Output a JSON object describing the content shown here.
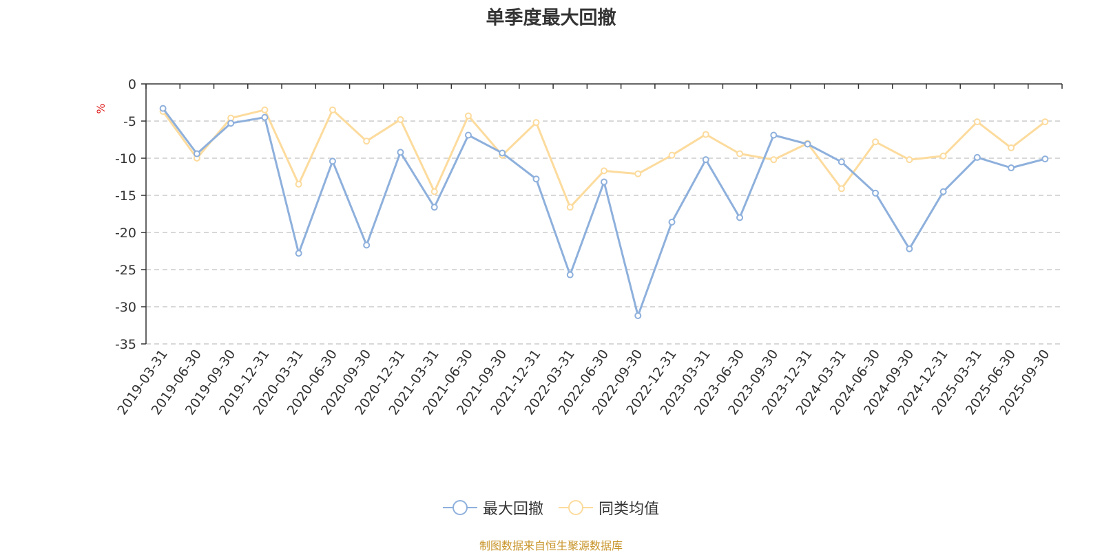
{
  "chart_data": {
    "type": "line",
    "title": "单季度最大回撤",
    "ylabel": "%",
    "xlabel": "",
    "ylim": [
      -35,
      0
    ],
    "yticks": [
      0,
      -5,
      -10,
      -15,
      -20,
      -25,
      -30,
      -35
    ],
    "categories": [
      "2019-03-31",
      "2019-06-30",
      "2019-09-30",
      "2019-12-31",
      "2020-03-31",
      "2020-06-30",
      "2020-09-30",
      "2020-12-31",
      "2021-03-31",
      "2021-06-30",
      "2021-09-30",
      "2021-12-31",
      "2022-03-31",
      "2022-06-30",
      "2022-09-30",
      "2022-12-31",
      "2023-03-31",
      "2023-06-30",
      "2023-09-30",
      "2023-12-31",
      "2024-03-31",
      "2024-06-30",
      "2024-09-30",
      "2024-12-31",
      "2025-03-31",
      "2025-06-30",
      "2025-09-30"
    ],
    "series": [
      {
        "name": "最大回撤",
        "color": "#8eb0dc",
        "values": [
          -3.3,
          -9.4,
          -5.3,
          -4.5,
          -22.8,
          -10.4,
          -21.7,
          -9.2,
          -16.6,
          -6.9,
          -9.3,
          -12.8,
          -25.7,
          -13.2,
          -31.2,
          -18.6,
          -10.2,
          -18.0,
          -6.9,
          -8.1,
          -10.5,
          -14.7,
          -22.2,
          -14.5,
          -9.9,
          -11.3,
          -10.1
        ]
      },
      {
        "name": "同类均值",
        "color": "#fcdb9d",
        "values": [
          -3.7,
          -10.0,
          -4.6,
          -3.5,
          -13.5,
          -3.5,
          -7.7,
          -4.8,
          -14.5,
          -4.3,
          -9.6,
          -5.2,
          -16.6,
          -11.7,
          -12.1,
          -9.6,
          -6.8,
          -9.4,
          -10.2,
          -8.0,
          -14.1,
          -7.8,
          -10.2,
          -9.7,
          -5.1,
          -8.6,
          -5.1
        ]
      }
    ]
  },
  "legend": [
    "最大回撤",
    "同类均值"
  ],
  "source_text": "制图数据来自恒生聚源数据库",
  "colors": {
    "source": "#c8952c",
    "yunit": "#e02020",
    "grid": "#cccccc",
    "axis": "#333333"
  }
}
